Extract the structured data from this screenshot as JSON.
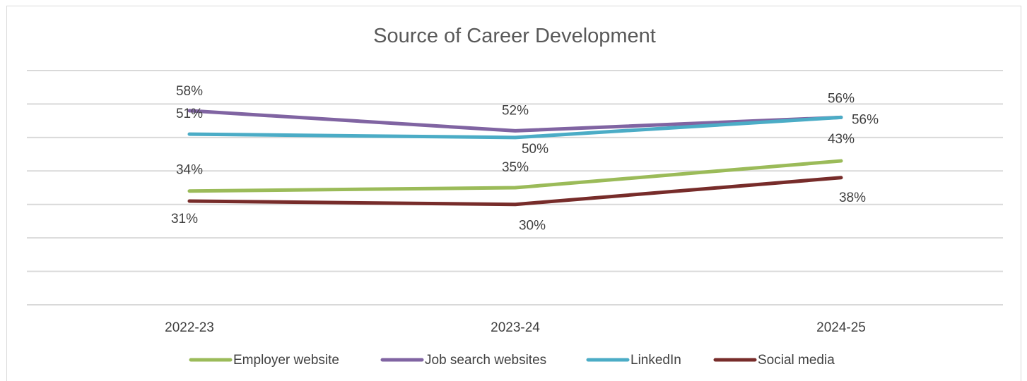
{
  "chart_data": {
    "type": "line",
    "title": "Source of Career Development",
    "categories": [
      "2022-23",
      "2023-24",
      "2024-25"
    ],
    "ylim": [
      0,
      70
    ],
    "grid": true,
    "legend_position": "bottom",
    "series": [
      {
        "name": "Employer website",
        "values": [
          34,
          35,
          43
        ],
        "color": "#9bbb59",
        "labels": [
          "34%",
          "35%",
          "43%"
        ]
      },
      {
        "name": "Job search websites",
        "values": [
          58,
          52,
          56
        ],
        "color": "#8064a2",
        "labels": [
          "58%",
          "52%",
          "56%"
        ]
      },
      {
        "name": "LinkedIn",
        "values": [
          51,
          50,
          56
        ],
        "color": "#4bacc6",
        "labels": [
          "51%",
          "50%",
          "56%"
        ]
      },
      {
        "name": "Social media",
        "values": [
          31,
          30,
          38
        ],
        "color": "#772c2a",
        "labels": [
          "31%",
          "30%",
          "38%"
        ]
      }
    ]
  }
}
